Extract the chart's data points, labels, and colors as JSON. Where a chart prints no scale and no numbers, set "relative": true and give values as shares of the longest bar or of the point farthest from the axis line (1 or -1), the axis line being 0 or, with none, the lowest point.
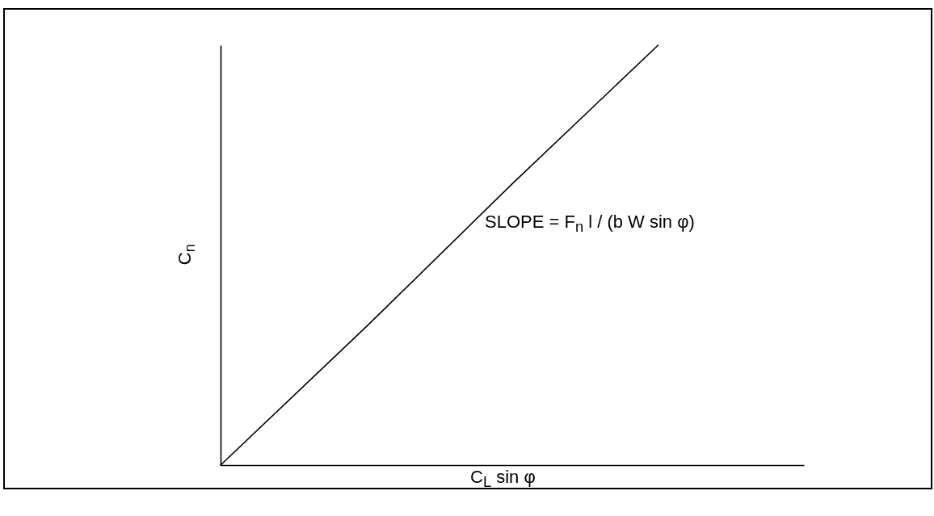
{
  "chart_data": {
    "type": "line",
    "relative": true,
    "categories": [
      null,
      null,
      null,
      null,
      null
    ],
    "values": [
      0,
      0.33,
      0.67,
      1,
      null
    ],
    "color": "#000000",
    "xlabel": "C$_{L}$ sin φ",
    "ylabel": "C$_{n}$",
    "annotations": [
      "SLOPE = F$_{n}$ l / (b W sin φ)"
    ],
    "line_style": "solid"
  }
}
